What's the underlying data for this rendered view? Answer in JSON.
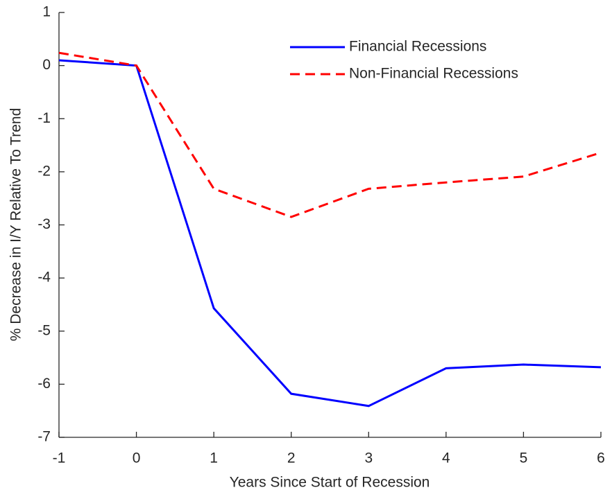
{
  "chart_data": {
    "type": "line",
    "x_label": "Years Since Start of Recession",
    "y_label": "% Decrease in I/Y Relative To Trend",
    "x": [
      -1,
      0,
      1,
      2,
      3,
      4,
      5,
      6
    ],
    "series": [
      {
        "name": "Financial Recessions",
        "color": "#0000ff",
        "linestyle": "solid",
        "values": [
          0.1,
          0.0,
          -4.57,
          -6.18,
          -6.41,
          -5.7,
          -5.63,
          -5.68
        ]
      },
      {
        "name": "Non-Financial Recessions",
        "color": "#ff0000",
        "linestyle": "dashed",
        "values": [
          0.24,
          0.0,
          -2.32,
          -2.85,
          -2.32,
          -2.2,
          -2.09,
          -1.64
        ]
      }
    ],
    "xlim": [
      -1,
      6
    ],
    "xticks": [
      -1,
      0,
      1,
      2,
      3,
      4,
      5,
      6
    ],
    "ylim": [
      -7,
      1
    ],
    "yticks": [
      -7,
      -6,
      -5,
      -4,
      -3,
      -2,
      -1,
      0,
      1
    ],
    "grid": false,
    "legend": "top-right"
  }
}
